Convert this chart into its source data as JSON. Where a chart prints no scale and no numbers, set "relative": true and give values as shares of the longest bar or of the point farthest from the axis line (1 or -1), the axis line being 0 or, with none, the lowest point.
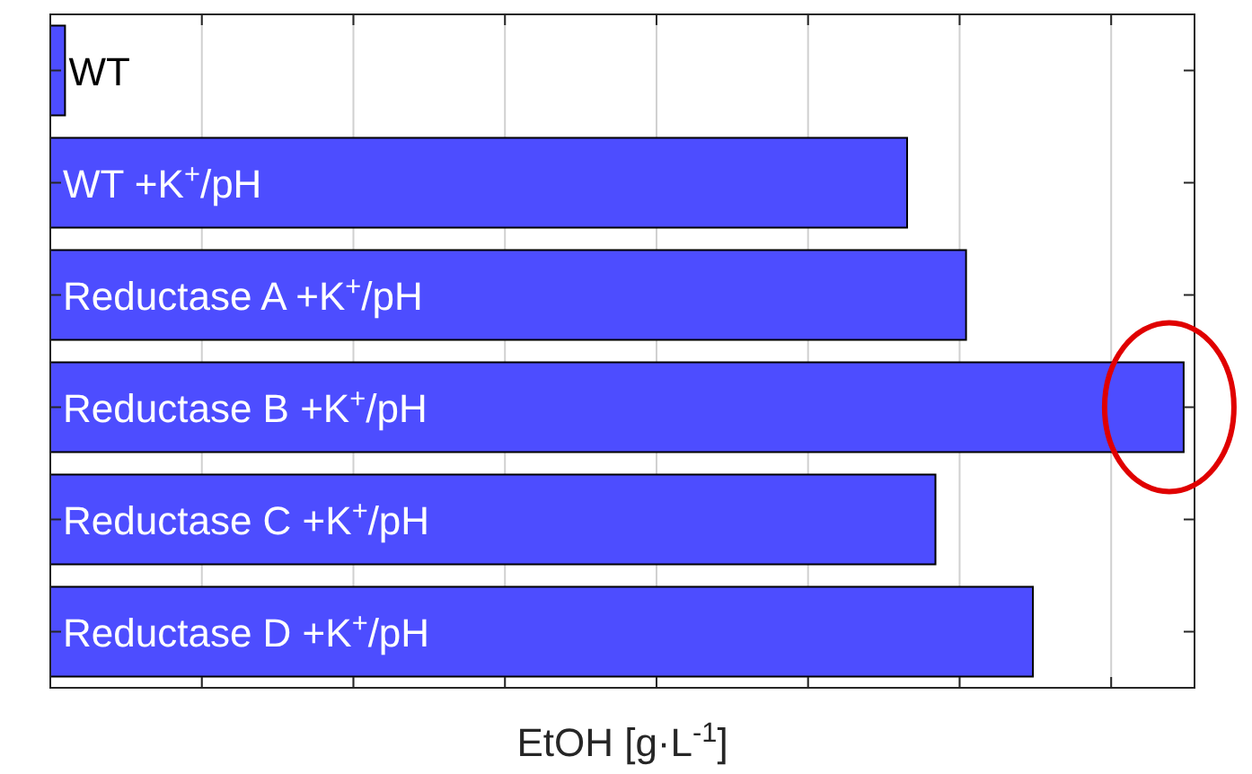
{
  "chart_data": {
    "type": "bar",
    "orientation": "horizontal",
    "relative": true,
    "xlabel": "EtOH [g·L$^{-1}$]",
    "categories": [
      "WT",
      "WT +K$^{+}$/pH",
      "Reductase A +K$^{+}$/pH",
      "Reductase B +K$^{+}$/pH",
      "Reductase C +K$^{+}$/pH",
      "Reductase D +K$^{+}$/pH"
    ],
    "values": [
      0.013,
      0.756,
      0.808,
      1,
      0.781,
      0.867
    ],
    "color": "#4d4dff",
    "grid": "x",
    "tick_labels": false
  }
}
